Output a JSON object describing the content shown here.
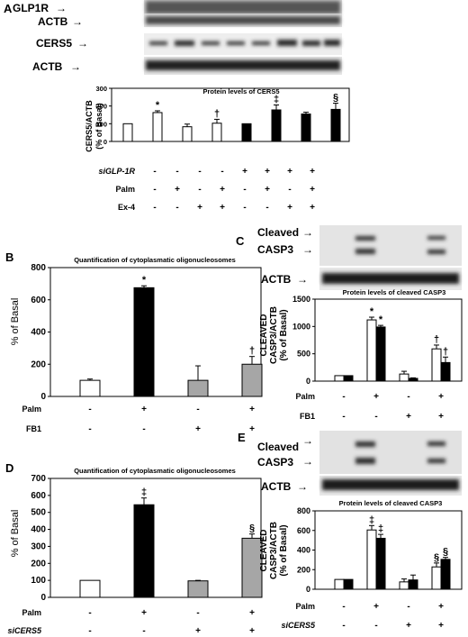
{
  "panels": {
    "A": {
      "letter": "A",
      "blot_labels": [
        "GLP1R",
        "ACTB",
        "CERS5",
        "ACTB"
      ],
      "chart_title": "Protein levels of CERS5",
      "ylabel": [
        "CERS5/ACTB",
        "(% of Basal)"
      ],
      "row_labels": [
        "siGLP-1R",
        "Palm",
        "Ex-4"
      ],
      "rows": [
        [
          "-",
          "-",
          "-",
          "-",
          "+",
          "+",
          "+",
          "+"
        ],
        [
          "-",
          "+",
          "-",
          "+",
          "-",
          "+",
          "-",
          "+"
        ],
        [
          "-",
          "-",
          "+",
          "+",
          "-",
          "-",
          "+",
          "+"
        ]
      ]
    },
    "B": {
      "letter": "B",
      "chart_title": "Quantification of cytoplasmatic oligonucleosomes",
      "ylabel": "% of Basal",
      "row_labels": [
        "Palm",
        "FB1"
      ],
      "rows": [
        [
          "-",
          "+",
          "-",
          "+"
        ],
        [
          "-",
          "-",
          "+",
          "+"
        ]
      ]
    },
    "C": {
      "letter": "C",
      "blot_labels": [
        "Cleaved",
        "CASP3",
        "ACTB"
      ],
      "chart_title": "Protein levels of cleaved CASP3",
      "ylabel": [
        "CLEAVED",
        "CASP3/ACTB",
        "(% of Basal)"
      ],
      "row_labels": [
        "Palm",
        "FB1"
      ],
      "rows": [
        [
          "-",
          "+",
          "-",
          "+"
        ],
        [
          "-",
          "-",
          "+",
          "+"
        ]
      ]
    },
    "D": {
      "letter": "D",
      "chart_title": "Quantification of cytoplasmatic oligonucleosomes",
      "ylabel": "% of Basal",
      "row_labels": [
        "Palm",
        "siCERS5"
      ],
      "rows": [
        [
          "-",
          "+",
          "-",
          "+"
        ],
        [
          "-",
          "-",
          "+",
          "+"
        ]
      ]
    },
    "E": {
      "letter": "E",
      "blot_labels": [
        "Cleaved",
        "CASP3",
        "ACTB"
      ],
      "chart_title": "Protein levels of cleaved CASP3",
      "ylabel": [
        "CLEAVED",
        "CASP3/ACTB",
        "(% of Basal)"
      ],
      "row_labels": [
        "Palm",
        "siCERS5"
      ],
      "rows": [
        [
          "-",
          "+",
          "-",
          "+"
        ],
        [
          "-",
          "-",
          "+",
          "+"
        ]
      ]
    }
  },
  "chart_data": [
    {
      "panel": "A",
      "type": "bar",
      "title": "Protein levels of CERS5",
      "ylabel": "CERS5/ACTB (% of Basal)",
      "ylim": [
        0,
        300
      ],
      "yticks": [
        0,
        100,
        200,
        300
      ],
      "values": [
        100,
        163,
        83,
        103,
        100,
        178,
        155,
        181
      ],
      "errors": [
        0,
        10,
        15,
        22,
        0,
        28,
        10,
        35
      ],
      "fills": [
        "#ffffff",
        "#ffffff",
        "#ffffff",
        "#ffffff",
        "#000000",
        "#000000",
        "#000000",
        "#000000"
      ],
      "marks": [
        "",
        "*",
        "",
        "†",
        "",
        "‡",
        "",
        "§"
      ]
    },
    {
      "panel": "B",
      "type": "bar",
      "title": "Quantification of cytoplasmatic oligonucleosomes",
      "ylabel": "% of Basal",
      "ylim": [
        0,
        800
      ],
      "yticks": [
        0,
        200,
        400,
        600,
        800
      ],
      "values": [
        100,
        675,
        100,
        200
      ],
      "errors": [
        8,
        12,
        90,
        48
      ],
      "fills": [
        "#ffffff",
        "#000000",
        "#a6a6a6",
        "#a6a6a6"
      ],
      "marks": [
        "",
        "*",
        "",
        "†"
      ]
    },
    {
      "panel": "C",
      "type": "bar",
      "title": "Protein levels of cleaved CASP3",
      "ylabel": "CLEAVED CASP3/ACTB (% of Basal)",
      "ylim": [
        0,
        1500
      ],
      "yticks": [
        0,
        500,
        1000,
        1500
      ],
      "paired": true,
      "values": [
        [
          100,
          100
        ],
        [
          1120,
          990
        ],
        [
          130,
          50
        ],
        [
          590,
          340
        ]
      ],
      "errors": [
        [
          0,
          0
        ],
        [
          50,
          30
        ],
        [
          50,
          10
        ],
        [
          70,
          100
        ]
      ],
      "fills": [
        "#ffffff",
        "#000000"
      ],
      "marks": [
        [
          "",
          ""
        ],
        [
          "*",
          "*"
        ],
        [
          "",
          ""
        ],
        [
          "†",
          "†"
        ]
      ]
    },
    {
      "panel": "D",
      "type": "bar",
      "title": "Quantification of cytoplasmatic oligonucleosomes",
      "ylabel": "% of Basal",
      "ylim": [
        0,
        700
      ],
      "yticks": [
        0,
        100,
        200,
        300,
        400,
        500,
        600,
        700
      ],
      "values": [
        100,
        545,
        97,
        348
      ],
      "errors": [
        0,
        40,
        3,
        25
      ],
      "fills": [
        "#ffffff",
        "#000000",
        "#a6a6a6",
        "#a6a6a6"
      ],
      "marks": [
        "",
        "‡",
        "",
        "§"
      ]
    },
    {
      "panel": "E",
      "type": "bar",
      "title": "Protein levels of cleaved CASP3",
      "ylabel": "CLEAVED CASP3/ACTB (% of Basal)",
      "ylim": [
        0,
        800
      ],
      "yticks": [
        0,
        200,
        400,
        600,
        800
      ],
      "paired": true,
      "values": [
        [
          100,
          100
        ],
        [
          605,
          520
        ],
        [
          75,
          95
        ],
        [
          228,
          305
        ]
      ],
      "errors": [
        [
          0,
          0
        ],
        [
          45,
          40
        ],
        [
          30,
          50
        ],
        [
          40,
          20
        ]
      ],
      "fills": [
        "#ffffff",
        "#000000"
      ],
      "marks": [
        [
          "",
          ""
        ],
        [
          "‡",
          "‡"
        ],
        [
          "",
          ""
        ],
        [
          "§",
          "§"
        ]
      ]
    }
  ]
}
